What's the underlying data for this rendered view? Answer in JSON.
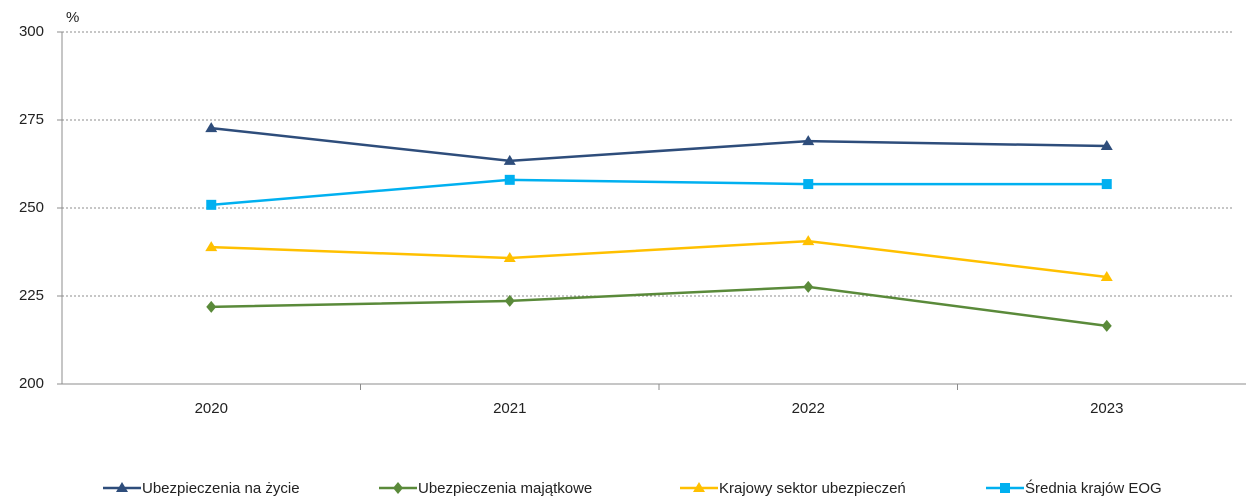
{
  "chart_data": {
    "type": "line",
    "y_label": "%",
    "categories": [
      "2020",
      "2021",
      "2022",
      "2023"
    ],
    "series": [
      {
        "name": "Ubezpieczenia na życie",
        "color": "#2e4d7b",
        "marker": "triangle",
        "values": [
          272.7,
          263.4,
          269.0,
          267.6
        ]
      },
      {
        "name": "Ubezpieczenia majątkowe",
        "color": "#5a8a3a",
        "marker": "diamond",
        "values": [
          221.9,
          223.6,
          227.6,
          216.5
        ]
      },
      {
        "name": "Krajowy sektor ubezpieczeń",
        "color": "#ffc000",
        "marker": "triangle",
        "values": [
          238.9,
          235.8,
          240.6,
          230.4
        ]
      },
      {
        "name": "Średnia krajów EOG",
        "color": "#00b0f0",
        "marker": "square",
        "values": [
          250.9,
          258.0,
          256.8,
          256.8
        ]
      }
    ],
    "ylim": [
      200,
      300
    ],
    "yticks": [
      200,
      225,
      250,
      275,
      300
    ],
    "grid": true
  }
}
